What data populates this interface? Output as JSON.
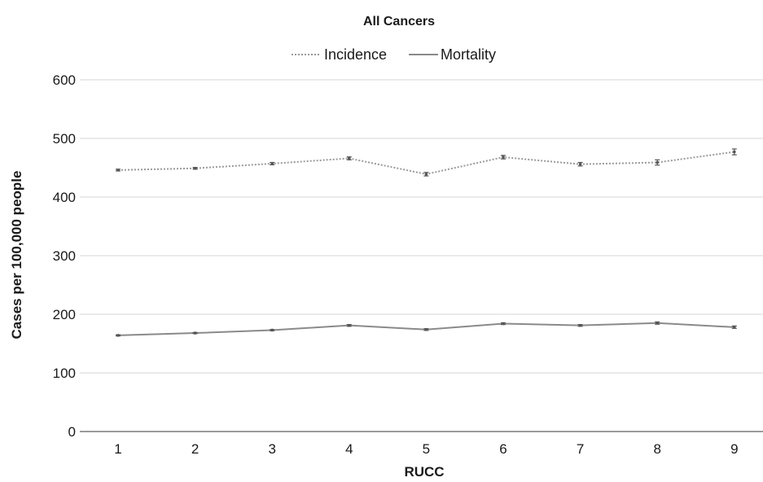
{
  "chart_data": {
    "type": "line",
    "title": "All Cancers",
    "xlabel": "RUCC",
    "ylabel": "Cases per 100,000 people",
    "categories": [
      "1",
      "2",
      "3",
      "4",
      "5",
      "6",
      "7",
      "8",
      "9"
    ],
    "ylim": [
      0,
      600
    ],
    "yticks": [
      0,
      100,
      200,
      300,
      400,
      500,
      600
    ],
    "grid": true,
    "legend_position": "top",
    "series": [
      {
        "name": "Incidence",
        "style": "dotted",
        "color": "#9a9a9a",
        "values": [
          446,
          449,
          457,
          466,
          439,
          468,
          456,
          459,
          477
        ],
        "error": [
          1.5,
          1.5,
          2,
          2.5,
          3,
          3,
          3,
          4.5,
          5
        ]
      },
      {
        "name": "Mortality",
        "style": "solid",
        "color": "#8a8a8a",
        "values": [
          164,
          168,
          173,
          181,
          174,
          184,
          181,
          185,
          178
        ],
        "error": [
          1,
          1,
          1,
          1.5,
          1.5,
          1.5,
          1.5,
          2,
          2
        ]
      }
    ]
  }
}
